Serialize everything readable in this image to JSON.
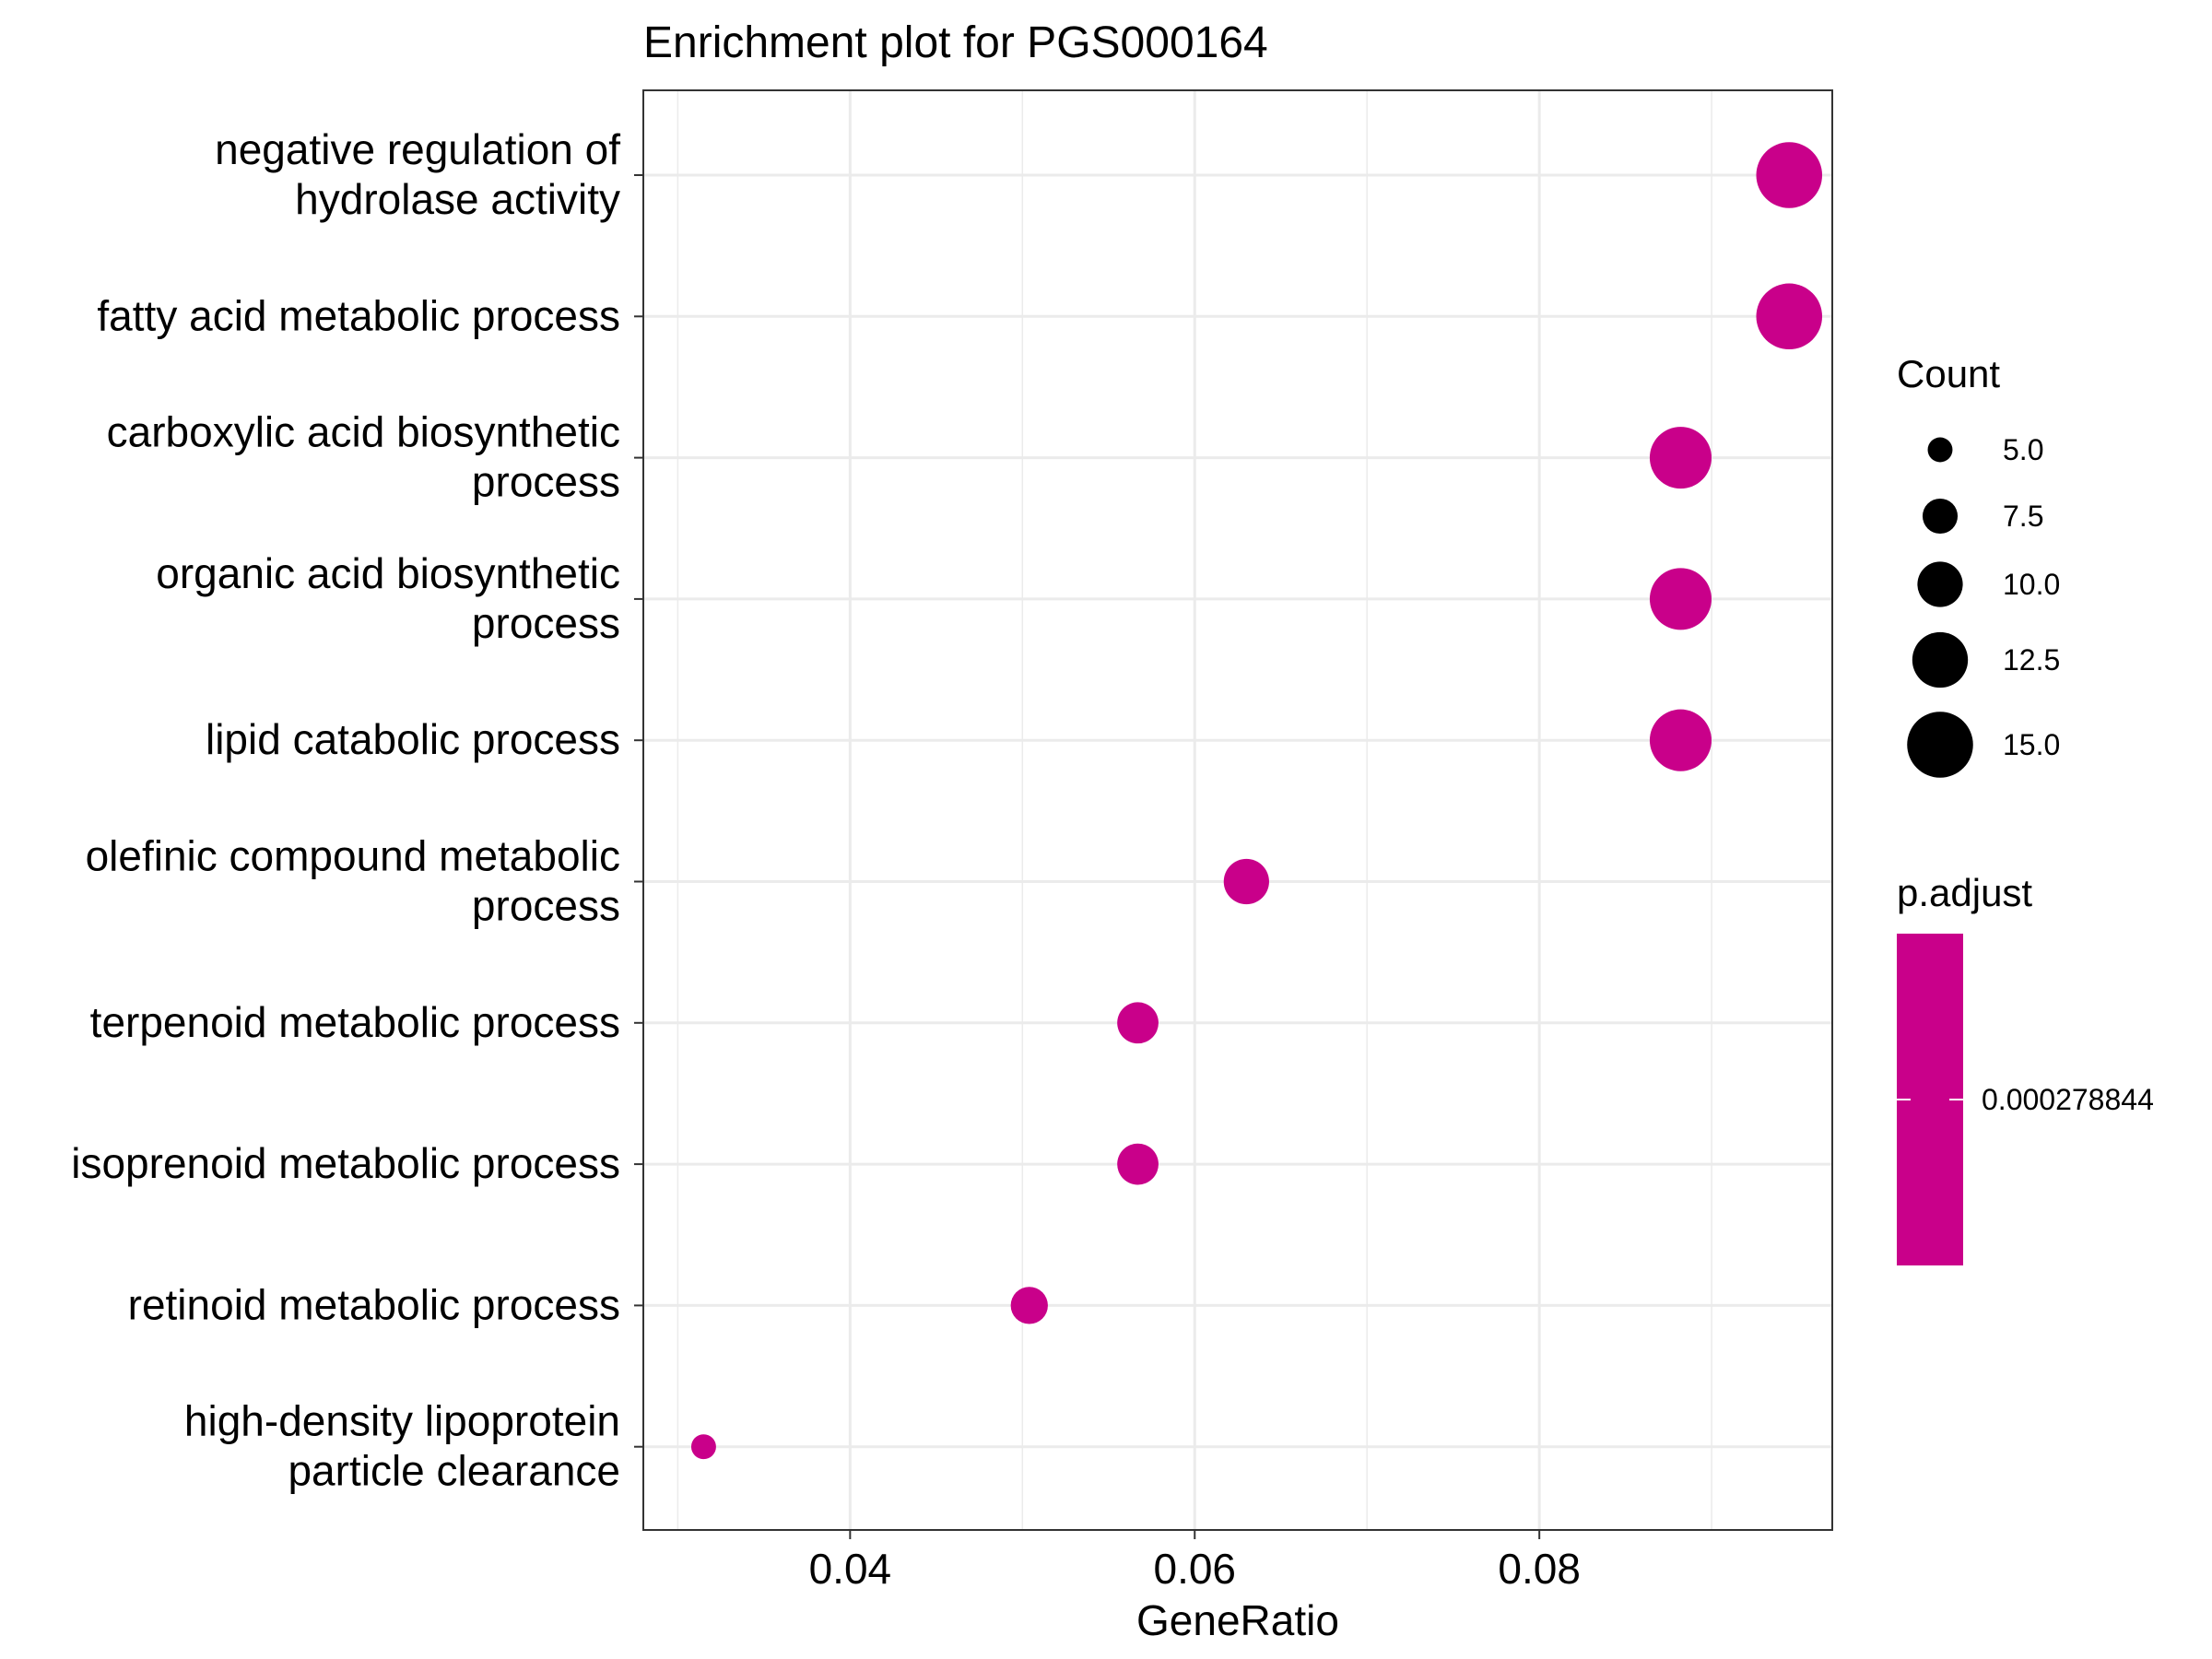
{
  "chart_data": {
    "type": "scatter",
    "title": "Enrichment plot for PGS000164",
    "xlabel": "GeneRatio",
    "ylabel": "",
    "xlim": [
      0.028,
      0.097
    ],
    "x_ticks": [
      "0.04",
      "0.06",
      "0.08"
    ],
    "x_tick_values": [
      0.04,
      0.06,
      0.08
    ],
    "categories": [
      [
        "negative regulation of",
        "hydrolase activity"
      ],
      [
        "fatty acid metabolic process"
      ],
      [
        "carboxylic acid biosynthetic",
        "process"
      ],
      [
        "organic acid biosynthetic",
        "process"
      ],
      [
        "lipid catabolic process"
      ],
      [
        "olefinic compound metabolic",
        "process"
      ],
      [
        "terpenoid metabolic process"
      ],
      [
        "isoprenoid metabolic process"
      ],
      [
        "retinoid metabolic process"
      ],
      [
        "high-density lipoprotein",
        "particle clearance"
      ]
    ],
    "points": [
      {
        "x": 0.0945,
        "count": 15
      },
      {
        "x": 0.0945,
        "count": 15
      },
      {
        "x": 0.0882,
        "count": 14
      },
      {
        "x": 0.0882,
        "count": 14
      },
      {
        "x": 0.0882,
        "count": 14
      },
      {
        "x": 0.063,
        "count": 10
      },
      {
        "x": 0.0567,
        "count": 9
      },
      {
        "x": 0.0567,
        "count": 9
      },
      {
        "x": 0.0504,
        "count": 8
      },
      {
        "x": 0.0315,
        "count": 5
      }
    ],
    "point_color": "#C9008A",
    "grid": true,
    "legend_count": {
      "title": "Count",
      "labels": [
        "5.0",
        "7.5",
        "10.0",
        "12.5",
        "15.0"
      ],
      "values": [
        5.0,
        7.5,
        10.0,
        12.5,
        15.0
      ]
    },
    "legend_padjust": {
      "title": "p.adjust",
      "label": "0.000278844",
      "value": 0.000278844,
      "color": "#C9008A"
    },
    "legend_placement": "right"
  }
}
